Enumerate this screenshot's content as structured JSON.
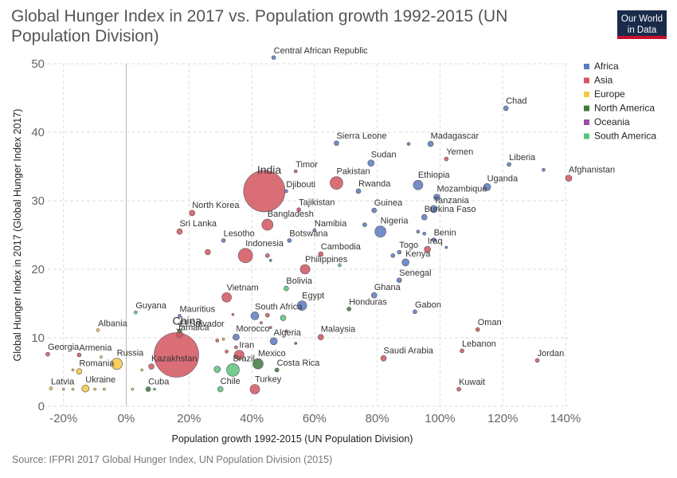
{
  "header": {
    "title": "Global Hunger Index in 2017 vs. Population growth 1992-2015 (UN Population Division)",
    "logo_line1": "Our World",
    "logo_line2": "in Data"
  },
  "footer": {
    "source": "Source: IFPRI 2017 Global Hunger Index, UN Population Division (2015)"
  },
  "chart_data": {
    "type": "scatter",
    "title": "Global Hunger Index in 2017 vs. Population growth 1992-2015 (UN Population Division)",
    "xlabel": "Population growth 1992-2015 (UN Population Division)",
    "ylabel": "Global Hunger Index in 2017 (Global Hunger Index 2017)",
    "xlim": [
      -25,
      141
    ],
    "ylim": [
      0,
      50
    ],
    "x_ticks": [
      -20,
      0,
      20,
      40,
      60,
      80,
      100,
      120,
      140
    ],
    "x_tick_labels": [
      "-20%",
      "0%",
      "20%",
      "40%",
      "60%",
      "80%",
      "100%",
      "120%",
      "140%"
    ],
    "y_ticks": [
      0,
      10,
      20,
      30,
      40,
      50
    ],
    "y_tick_labels": [
      "0",
      "10",
      "20",
      "30",
      "40",
      "50"
    ],
    "grid": true,
    "legend_position": "top-right",
    "legend": [
      {
        "name": "Africa",
        "color": "#5b7bbf"
      },
      {
        "name": "Asia",
        "color": "#d4555f"
      },
      {
        "name": "Europe",
        "color": "#f5c842"
      },
      {
        "name": "North America",
        "color": "#3d7a3d"
      },
      {
        "name": "Oceania",
        "color": "#9b4aa8"
      },
      {
        "name": "South America",
        "color": "#5cc47a"
      }
    ],
    "points": [
      {
        "label": "Central African Republic",
        "x": 47,
        "y": 50.9,
        "region": "Africa",
        "r": 2.5
      },
      {
        "label": "Chad",
        "x": 121,
        "y": 43.5,
        "region": "Africa",
        "r": 3
      },
      {
        "label": "Sierra Leone",
        "x": 67,
        "y": 38.4,
        "region": "Africa",
        "r": 3
      },
      {
        "label": "Madagascar",
        "x": 97,
        "y": 38.3,
        "region": "Africa",
        "r": 3.5
      },
      {
        "label": "",
        "x": 90,
        "y": 38.3,
        "region": "Africa",
        "r": 2
      },
      {
        "label": "Yemen",
        "x": 102,
        "y": 36.1,
        "region": "Asia",
        "r": 2.5
      },
      {
        "label": "Liberia",
        "x": 122,
        "y": 35.3,
        "region": "Africa",
        "r": 2.5
      },
      {
        "label": "Afghanistan",
        "x": 141,
        "y": 33.3,
        "region": "Asia",
        "r": 4
      },
      {
        "label": "",
        "x": 133,
        "y": 34.5,
        "region": "Africa",
        "r": 2
      },
      {
        "label": "Sudan",
        "x": 78,
        "y": 35.5,
        "region": "Africa",
        "r": 4
      },
      {
        "label": "Timor",
        "x": 54,
        "y": 34.3,
        "region": "Asia",
        "r": 2
      },
      {
        "label": "India",
        "x": 44,
        "y": 31.4,
        "region": "Asia",
        "r": 26
      },
      {
        "label": "Pakistan",
        "x": 67,
        "y": 32.6,
        "region": "Asia",
        "r": 8
      },
      {
        "label": "Djibouti",
        "x": 51,
        "y": 31.4,
        "region": "Africa",
        "r": 2
      },
      {
        "label": "Rwanda",
        "x": 74,
        "y": 31.4,
        "region": "Africa",
        "r": 3
      },
      {
        "label": "Ethiopia",
        "x": 93,
        "y": 32.3,
        "region": "Africa",
        "r": 6
      },
      {
        "label": "Uganda",
        "x": 115,
        "y": 32.0,
        "region": "Africa",
        "r": 4.5
      },
      {
        "label": "Mozambique",
        "x": 99,
        "y": 30.5,
        "region": "Africa",
        "r": 4
      },
      {
        "label": "Tanzania",
        "x": 98,
        "y": 28.8,
        "region": "Africa",
        "r": 4.5
      },
      {
        "label": "North Korea",
        "x": 21,
        "y": 28.2,
        "region": "Asia",
        "r": 3.5
      },
      {
        "label": "Tajikistan",
        "x": 55,
        "y": 28.7,
        "region": "Asia",
        "r": 2.5
      },
      {
        "label": "Guinea",
        "x": 79,
        "y": 28.6,
        "region": "Africa",
        "r": 3
      },
      {
        "label": "Burkina Faso",
        "x": 95,
        "y": 27.6,
        "region": "Africa",
        "r": 3.5
      },
      {
        "label": "Bangladesh",
        "x": 45,
        "y": 26.5,
        "region": "Asia",
        "r": 7
      },
      {
        "label": "Nigeria",
        "x": 81,
        "y": 25.5,
        "region": "Africa",
        "r": 7
      },
      {
        "label": "",
        "x": 76,
        "y": 26.5,
        "region": "Africa",
        "r": 2.5
      },
      {
        "label": "Sri Lanka",
        "x": 17,
        "y": 25.5,
        "region": "Asia",
        "r": 3.5
      },
      {
        "label": "Namibia",
        "x": 60,
        "y": 25.7,
        "region": "Africa",
        "r": 2
      },
      {
        "label": "Benin",
        "x": 98,
        "y": 24.3,
        "region": "Africa",
        "r": 2.5
      },
      {
        "label": "",
        "x": 93,
        "y": 25.5,
        "region": "Africa",
        "r": 2
      },
      {
        "label": "",
        "x": 95,
        "y": 25.2,
        "region": "Africa",
        "r": 2
      },
      {
        "label": "Lesotho",
        "x": 31,
        "y": 24.2,
        "region": "Africa",
        "r": 2.5
      },
      {
        "label": "Botswana",
        "x": 52,
        "y": 24.2,
        "region": "Africa",
        "r": 2.5
      },
      {
        "label": "Iraq",
        "x": 96,
        "y": 22.9,
        "region": "Asia",
        "r": 4
      },
      {
        "label": "",
        "x": 102,
        "y": 23.2,
        "region": "Africa",
        "r": 1.5
      },
      {
        "label": "Togo",
        "x": 87,
        "y": 22.5,
        "region": "Africa",
        "r": 2.5
      },
      {
        "label": "",
        "x": 85,
        "y": 22.0,
        "region": "Africa",
        "r": 2.5
      },
      {
        "label": "Kenya",
        "x": 89,
        "y": 21.0,
        "region": "Africa",
        "r": 4.5
      },
      {
        "label": "Indonesia",
        "x": 38,
        "y": 22.0,
        "region": "Asia",
        "r": 9
      },
      {
        "label": "",
        "x": 26,
        "y": 22.5,
        "region": "Asia",
        "r": 3.5
      },
      {
        "label": "",
        "x": 45,
        "y": 22.0,
        "region": "Asia",
        "r": 2.5
      },
      {
        "label": "Cambodia",
        "x": 62,
        "y": 22.2,
        "region": "Asia",
        "r": 3
      },
      {
        "label": "",
        "x": 46,
        "y": 21.3,
        "region": "Africa",
        "r": 1.5
      },
      {
        "label": "Philippines",
        "x": 57,
        "y": 20.0,
        "region": "Asia",
        "r": 6
      },
      {
        "label": "",
        "x": 68,
        "y": 20.6,
        "region": "South America",
        "r": 2
      },
      {
        "label": "Senegal",
        "x": 87,
        "y": 18.4,
        "region": "Africa",
        "r": 3
      },
      {
        "label": "Bolivia",
        "x": 51,
        "y": 17.2,
        "region": "South America",
        "r": 3
      },
      {
        "label": "Vietnam",
        "x": 32,
        "y": 15.9,
        "region": "Asia",
        "r": 6
      },
      {
        "label": "Ghana",
        "x": 79,
        "y": 16.2,
        "region": "Africa",
        "r": 3.5
      },
      {
        "label": "Egypt",
        "x": 56,
        "y": 14.7,
        "region": "Africa",
        "r": 6
      },
      {
        "label": "Honduras",
        "x": 71,
        "y": 14.2,
        "region": "North America",
        "r": 2.5
      },
      {
        "label": "Gabon",
        "x": 92,
        "y": 13.8,
        "region": "Africa",
        "r": 2.5
      },
      {
        "label": "Guyana",
        "x": 3,
        "y": 13.7,
        "region": "South America",
        "r": 2
      },
      {
        "label": "Mauritius",
        "x": 17,
        "y": 13.2,
        "region": "Africa",
        "r": 2
      },
      {
        "label": "South Africa",
        "x": 41,
        "y": 13.2,
        "region": "Africa",
        "r": 5
      },
      {
        "label": "",
        "x": 50,
        "y": 12.9,
        "region": "South America",
        "r": 3.5
      },
      {
        "label": "",
        "x": 45,
        "y": 13.3,
        "region": "Asia",
        "r": 2.5
      },
      {
        "label": "",
        "x": 34,
        "y": 13.4,
        "region": "Asia",
        "r": 1.5
      },
      {
        "label": "",
        "x": 43,
        "y": 12.2,
        "region": "Asia",
        "r": 1.5
      },
      {
        "label": "Albania",
        "x": -9,
        "y": 11.1,
        "region": "Europe",
        "r": 2
      },
      {
        "label": "El Salvador",
        "x": 17,
        "y": 11.0,
        "region": "North America",
        "r": 2.5
      },
      {
        "label": "Oman",
        "x": 112,
        "y": 11.2,
        "region": "Asia",
        "r": 2.5
      },
      {
        "label": "",
        "x": 46,
        "y": 11.5,
        "region": "Asia",
        "r": 1.5
      },
      {
        "label": "",
        "x": 51,
        "y": 11.0,
        "region": "Asia",
        "r": 1.5
      },
      {
        "label": "China",
        "x": 17,
        "y": 10.5,
        "region": "Asia",
        "r": 4
      },
      {
        "label": "Morocco",
        "x": 35,
        "y": 10.1,
        "region": "Africa",
        "r": 4
      },
      {
        "label": "Algeria",
        "x": 47,
        "y": 9.5,
        "region": "Africa",
        "r": 4.5
      },
      {
        "label": "Malaysia",
        "x": 62,
        "y": 10.1,
        "region": "Asia",
        "r": 3.5
      },
      {
        "label": "",
        "x": 29,
        "y": 9.6,
        "region": "Asia",
        "r": 2
      },
      {
        "label": "",
        "x": 31,
        "y": 9.8,
        "region": "Europe",
        "r": 1.5
      },
      {
        "label": "",
        "x": 54,
        "y": 9.2,
        "region": "North America",
        "r": 1.5
      },
      {
        "label": "Jamaica",
        "x": 16,
        "y": 7.5,
        "region": "Asia",
        "r": 28
      },
      {
        "label": "Lebanon",
        "x": 107,
        "y": 8.1,
        "region": "Asia",
        "r": 2.5
      },
      {
        "label": "Georgia",
        "x": -25,
        "y": 7.6,
        "region": "Asia",
        "r": 2.5
      },
      {
        "label": "Armenia",
        "x": -15,
        "y": 7.5,
        "region": "Asia",
        "r": 2.5
      },
      {
        "label": "Iran",
        "x": 36,
        "y": 7.5,
        "region": "Asia",
        "r": 6
      },
      {
        "label": "",
        "x": 32,
        "y": 8.0,
        "region": "Asia",
        "r": 2
      },
      {
        "label": "",
        "x": 35,
        "y": 8.6,
        "region": "Asia",
        "r": 2
      },
      {
        "label": "Saudi Arabia",
        "x": 82,
        "y": 7.0,
        "region": "Asia",
        "r": 3.5
      },
      {
        "label": "Jordan",
        "x": 131,
        "y": 6.7,
        "region": "Asia",
        "r": 2.5
      },
      {
        "label": "Russia",
        "x": -3,
        "y": 6.2,
        "region": "Europe",
        "r": 7
      },
      {
        "label": "Mexico",
        "x": 42,
        "y": 6.2,
        "region": "North America",
        "r": 6.5
      },
      {
        "label": "Brazil",
        "x": 34,
        "y": 5.3,
        "region": "South America",
        "r": 8
      },
      {
        "label": "Kazakhstan",
        "x": 8,
        "y": 5.8,
        "region": "Asia",
        "r": 3.5
      },
      {
        "label": "Costa Rica",
        "x": 48,
        "y": 5.3,
        "region": "North America",
        "r": 2.5
      },
      {
        "label": "Romania",
        "x": -15,
        "y": 5.1,
        "region": "Europe",
        "r": 3.5
      },
      {
        "label": "",
        "x": -17,
        "y": 5.3,
        "region": "Europe",
        "r": 1.5
      },
      {
        "label": "",
        "x": -8,
        "y": 7.2,
        "region": "Europe",
        "r": 1.5
      },
      {
        "label": "",
        "x": 5,
        "y": 5.3,
        "region": "Europe",
        "r": 1.5
      },
      {
        "label": "",
        "x": 29,
        "y": 5.4,
        "region": "South America",
        "r": 4
      },
      {
        "label": "Latvia",
        "x": -24,
        "y": 2.6,
        "region": "Europe",
        "r": 2
      },
      {
        "label": "Ukraine",
        "x": -13,
        "y": 2.6,
        "region": "Europe",
        "r": 4.5
      },
      {
        "label": "Cuba",
        "x": 7,
        "y": 2.5,
        "region": "North America",
        "r": 3
      },
      {
        "label": "Chile",
        "x": 30,
        "y": 2.5,
        "region": "South America",
        "r": 3.5
      },
      {
        "label": "Turkey",
        "x": 41,
        "y": 2.5,
        "region": "Asia",
        "r": 6
      },
      {
        "label": "Kuwait",
        "x": 106,
        "y": 2.5,
        "region": "Asia",
        "r": 2.5
      },
      {
        "label": "",
        "x": -20,
        "y": 2.5,
        "region": "Europe",
        "r": 1.5
      },
      {
        "label": "",
        "x": -17,
        "y": 2.5,
        "region": "Europe",
        "r": 1.5
      },
      {
        "label": "",
        "x": -10,
        "y": 2.5,
        "region": "Europe",
        "r": 1.5
      },
      {
        "label": "",
        "x": -7,
        "y": 2.5,
        "region": "Europe",
        "r": 1.5
      },
      {
        "label": "",
        "x": 2,
        "y": 2.5,
        "region": "Europe",
        "r": 1.5
      },
      {
        "label": "",
        "x": 9,
        "y": 2.5,
        "region": "South America",
        "r": 1.5
      }
    ]
  }
}
